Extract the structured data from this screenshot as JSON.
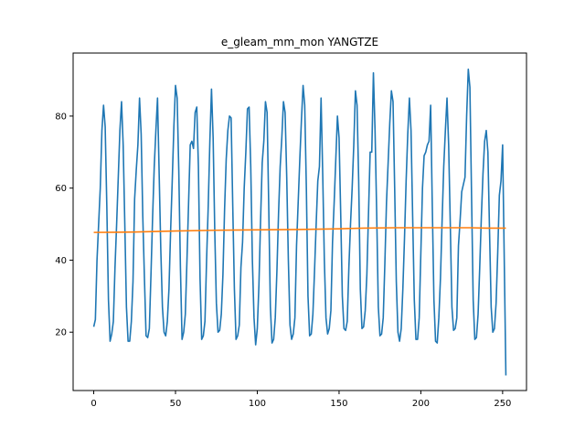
{
  "chart_data": {
    "type": "line",
    "title": "e_gleam_mm_mon YANGTZE",
    "xlabel": "",
    "ylabel": "",
    "xlim": [
      -12.6,
      264.6
    ],
    "ylim": [
      3.8,
      97.5
    ],
    "xticks": [
      0,
      50,
      100,
      150,
      200,
      250
    ],
    "yticks": [
      20,
      40,
      60,
      80
    ],
    "grid": false,
    "legend": "none",
    "series": [
      {
        "color": "#1f77b4",
        "points": [
          [
            0,
            21.5
          ],
          [
            1,
            23.5
          ],
          [
            2,
            40
          ],
          [
            3,
            50
          ],
          [
            4,
            60
          ],
          [
            5,
            76
          ],
          [
            6,
            83
          ],
          [
            7,
            77
          ],
          [
            8,
            55
          ],
          [
            9,
            29
          ],
          [
            10,
            17.5
          ],
          [
            11,
            19.5
          ],
          [
            12,
            23
          ],
          [
            13,
            38
          ],
          [
            14,
            50
          ],
          [
            15,
            63
          ],
          [
            16,
            76
          ],
          [
            17,
            84
          ],
          [
            18,
            72
          ],
          [
            19,
            50
          ],
          [
            20,
            27
          ],
          [
            21,
            17.5
          ],
          [
            22,
            17.5
          ],
          [
            23,
            23
          ],
          [
            24,
            34
          ],
          [
            25,
            57
          ],
          [
            26,
            65
          ],
          [
            27,
            72
          ],
          [
            28,
            85
          ],
          [
            29,
            75
          ],
          [
            30,
            52
          ],
          [
            31,
            35
          ],
          [
            32,
            19
          ],
          [
            33,
            18.5
          ],
          [
            34,
            21
          ],
          [
            35,
            36
          ],
          [
            36,
            52
          ],
          [
            37,
            66
          ],
          [
            38,
            76
          ],
          [
            39,
            85
          ],
          [
            40,
            64
          ],
          [
            41,
            43
          ],
          [
            42,
            27
          ],
          [
            43,
            20
          ],
          [
            44,
            19
          ],
          [
            45,
            23
          ],
          [
            46,
            32
          ],
          [
            47,
            48
          ],
          [
            48,
            62
          ],
          [
            49,
            77
          ],
          [
            50,
            88.5
          ],
          [
            51,
            85
          ],
          [
            52,
            65
          ],
          [
            53,
            38
          ],
          [
            54,
            18
          ],
          [
            55,
            20
          ],
          [
            56,
            25
          ],
          [
            57,
            40
          ],
          [
            58,
            56
          ],
          [
            59,
            72
          ],
          [
            60,
            73
          ],
          [
            61,
            71
          ],
          [
            62,
            81
          ],
          [
            63,
            82.5
          ],
          [
            64,
            66
          ],
          [
            65,
            35
          ],
          [
            66,
            18
          ],
          [
            67,
            19
          ],
          [
            68,
            23
          ],
          [
            69,
            40
          ],
          [
            70,
            55
          ],
          [
            71,
            73
          ],
          [
            72,
            87.5
          ],
          [
            73,
            74
          ],
          [
            74,
            48
          ],
          [
            75,
            28
          ],
          [
            76,
            20
          ],
          [
            77,
            20.5
          ],
          [
            78,
            25
          ],
          [
            79,
            36
          ],
          [
            80,
            54
          ],
          [
            81,
            68
          ],
          [
            82,
            76
          ],
          [
            83,
            80
          ],
          [
            84,
            79.5
          ],
          [
            85,
            55
          ],
          [
            86,
            32
          ],
          [
            87,
            18
          ],
          [
            88,
            19
          ],
          [
            89,
            22
          ],
          [
            90,
            38
          ],
          [
            91,
            45
          ],
          [
            92,
            60
          ],
          [
            93,
            70
          ],
          [
            94,
            82
          ],
          [
            95,
            82.5
          ],
          [
            96,
            66
          ],
          [
            97,
            40
          ],
          [
            98,
            24
          ],
          [
            99,
            16.5
          ],
          [
            100,
            21
          ],
          [
            101,
            33
          ],
          [
            102,
            51
          ],
          [
            103,
            67
          ],
          [
            104,
            73
          ],
          [
            105,
            84
          ],
          [
            106,
            81
          ],
          [
            107,
            55
          ],
          [
            108,
            27
          ],
          [
            109,
            17
          ],
          [
            110,
            18
          ],
          [
            111,
            24
          ],
          [
            112,
            37
          ],
          [
            113,
            53
          ],
          [
            114,
            66
          ],
          [
            115,
            74
          ],
          [
            116,
            84
          ],
          [
            117,
            81
          ],
          [
            118,
            63
          ],
          [
            119,
            40
          ],
          [
            120,
            22
          ],
          [
            121,
            18
          ],
          [
            122,
            19.5
          ],
          [
            123,
            24
          ],
          [
            124,
            44
          ],
          [
            125,
            56
          ],
          [
            126,
            68
          ],
          [
            127,
            79
          ],
          [
            128,
            88.5
          ],
          [
            129,
            83
          ],
          [
            130,
            60
          ],
          [
            131,
            30
          ],
          [
            132,
            19
          ],
          [
            133,
            19.5
          ],
          [
            134,
            25
          ],
          [
            135,
            37
          ],
          [
            136,
            50
          ],
          [
            137,
            62
          ],
          [
            138,
            66
          ],
          [
            139,
            85
          ],
          [
            140,
            64
          ],
          [
            141,
            40
          ],
          [
            142,
            24
          ],
          [
            143,
            19.5
          ],
          [
            144,
            21
          ],
          [
            145,
            26
          ],
          [
            146,
            45
          ],
          [
            147,
            56
          ],
          [
            148,
            68
          ],
          [
            149,
            80
          ],
          [
            150,
            74
          ],
          [
            151,
            53
          ],
          [
            152,
            30
          ],
          [
            153,
            21
          ],
          [
            154,
            20.5
          ],
          [
            155,
            23
          ],
          [
            156,
            38
          ],
          [
            157,
            50
          ],
          [
            158,
            60
          ],
          [
            159,
            72
          ],
          [
            160,
            87
          ],
          [
            161,
            83
          ],
          [
            162,
            62
          ],
          [
            163,
            32
          ],
          [
            164,
            21
          ],
          [
            165,
            21.5
          ],
          [
            166,
            26
          ],
          [
            167,
            36
          ],
          [
            168,
            53
          ],
          [
            169,
            70
          ],
          [
            170,
            70
          ],
          [
            171,
            92
          ],
          [
            172,
            76
          ],
          [
            173,
            53
          ],
          [
            174,
            27
          ],
          [
            175,
            19
          ],
          [
            176,
            19.5
          ],
          [
            177,
            24
          ],
          [
            178,
            39
          ],
          [
            179,
            56
          ],
          [
            180,
            67
          ],
          [
            181,
            78
          ],
          [
            182,
            87
          ],
          [
            183,
            84
          ],
          [
            184,
            60
          ],
          [
            185,
            34
          ],
          [
            186,
            20
          ],
          [
            187,
            17.5
          ],
          [
            188,
            21
          ],
          [
            189,
            32
          ],
          [
            190,
            46
          ],
          [
            191,
            62
          ],
          [
            192,
            75
          ],
          [
            193,
            85
          ],
          [
            194,
            76
          ],
          [
            195,
            52
          ],
          [
            196,
            29
          ],
          [
            197,
            18
          ],
          [
            198,
            18
          ],
          [
            199,
            24
          ],
          [
            200,
            42
          ],
          [
            201,
            60
          ],
          [
            202,
            69
          ],
          [
            203,
            70
          ],
          [
            204,
            72
          ],
          [
            205,
            73
          ],
          [
            206,
            83
          ],
          [
            207,
            55
          ],
          [
            208,
            29
          ],
          [
            209,
            17.5
          ],
          [
            210,
            17
          ],
          [
            211,
            24
          ],
          [
            212,
            35
          ],
          [
            213,
            51
          ],
          [
            214,
            66
          ],
          [
            215,
            76
          ],
          [
            216,
            85
          ],
          [
            217,
            72
          ],
          [
            218,
            50
          ],
          [
            219,
            27
          ],
          [
            220,
            20.5
          ],
          [
            221,
            21
          ],
          [
            222,
            24
          ],
          [
            223,
            44
          ],
          [
            224,
            51
          ],
          [
            225,
            59
          ],
          [
            226,
            61
          ],
          [
            227,
            63
          ],
          [
            228,
            80
          ],
          [
            229,
            93
          ],
          [
            230,
            88
          ],
          [
            231,
            58
          ],
          [
            232,
            29
          ],
          [
            233,
            18
          ],
          [
            234,
            18.5
          ],
          [
            235,
            25
          ],
          [
            236,
            38
          ],
          [
            237,
            52
          ],
          [
            238,
            64
          ],
          [
            239,
            73
          ],
          [
            240,
            76
          ],
          [
            241,
            70
          ],
          [
            242,
            48
          ],
          [
            243,
            27
          ],
          [
            244,
            20
          ],
          [
            245,
            21
          ],
          [
            246,
            28
          ],
          [
            247,
            42
          ],
          [
            248,
            58
          ],
          [
            249,
            62
          ],
          [
            250,
            72
          ],
          [
            251,
            40
          ],
          [
            252,
            8
          ]
        ]
      },
      {
        "color": "#ff7f0e",
        "points": [
          [
            0,
            47.7
          ],
          [
            25,
            47.8
          ],
          [
            50,
            48.1
          ],
          [
            75,
            48.3
          ],
          [
            100,
            48.4
          ],
          [
            125,
            48.5
          ],
          [
            150,
            48.7
          ],
          [
            165,
            48.9
          ],
          [
            185,
            49.0
          ],
          [
            200,
            49.0
          ],
          [
            215,
            49.0
          ],
          [
            230,
            49.0
          ],
          [
            240,
            48.9
          ],
          [
            252,
            48.9
          ]
        ]
      }
    ]
  }
}
